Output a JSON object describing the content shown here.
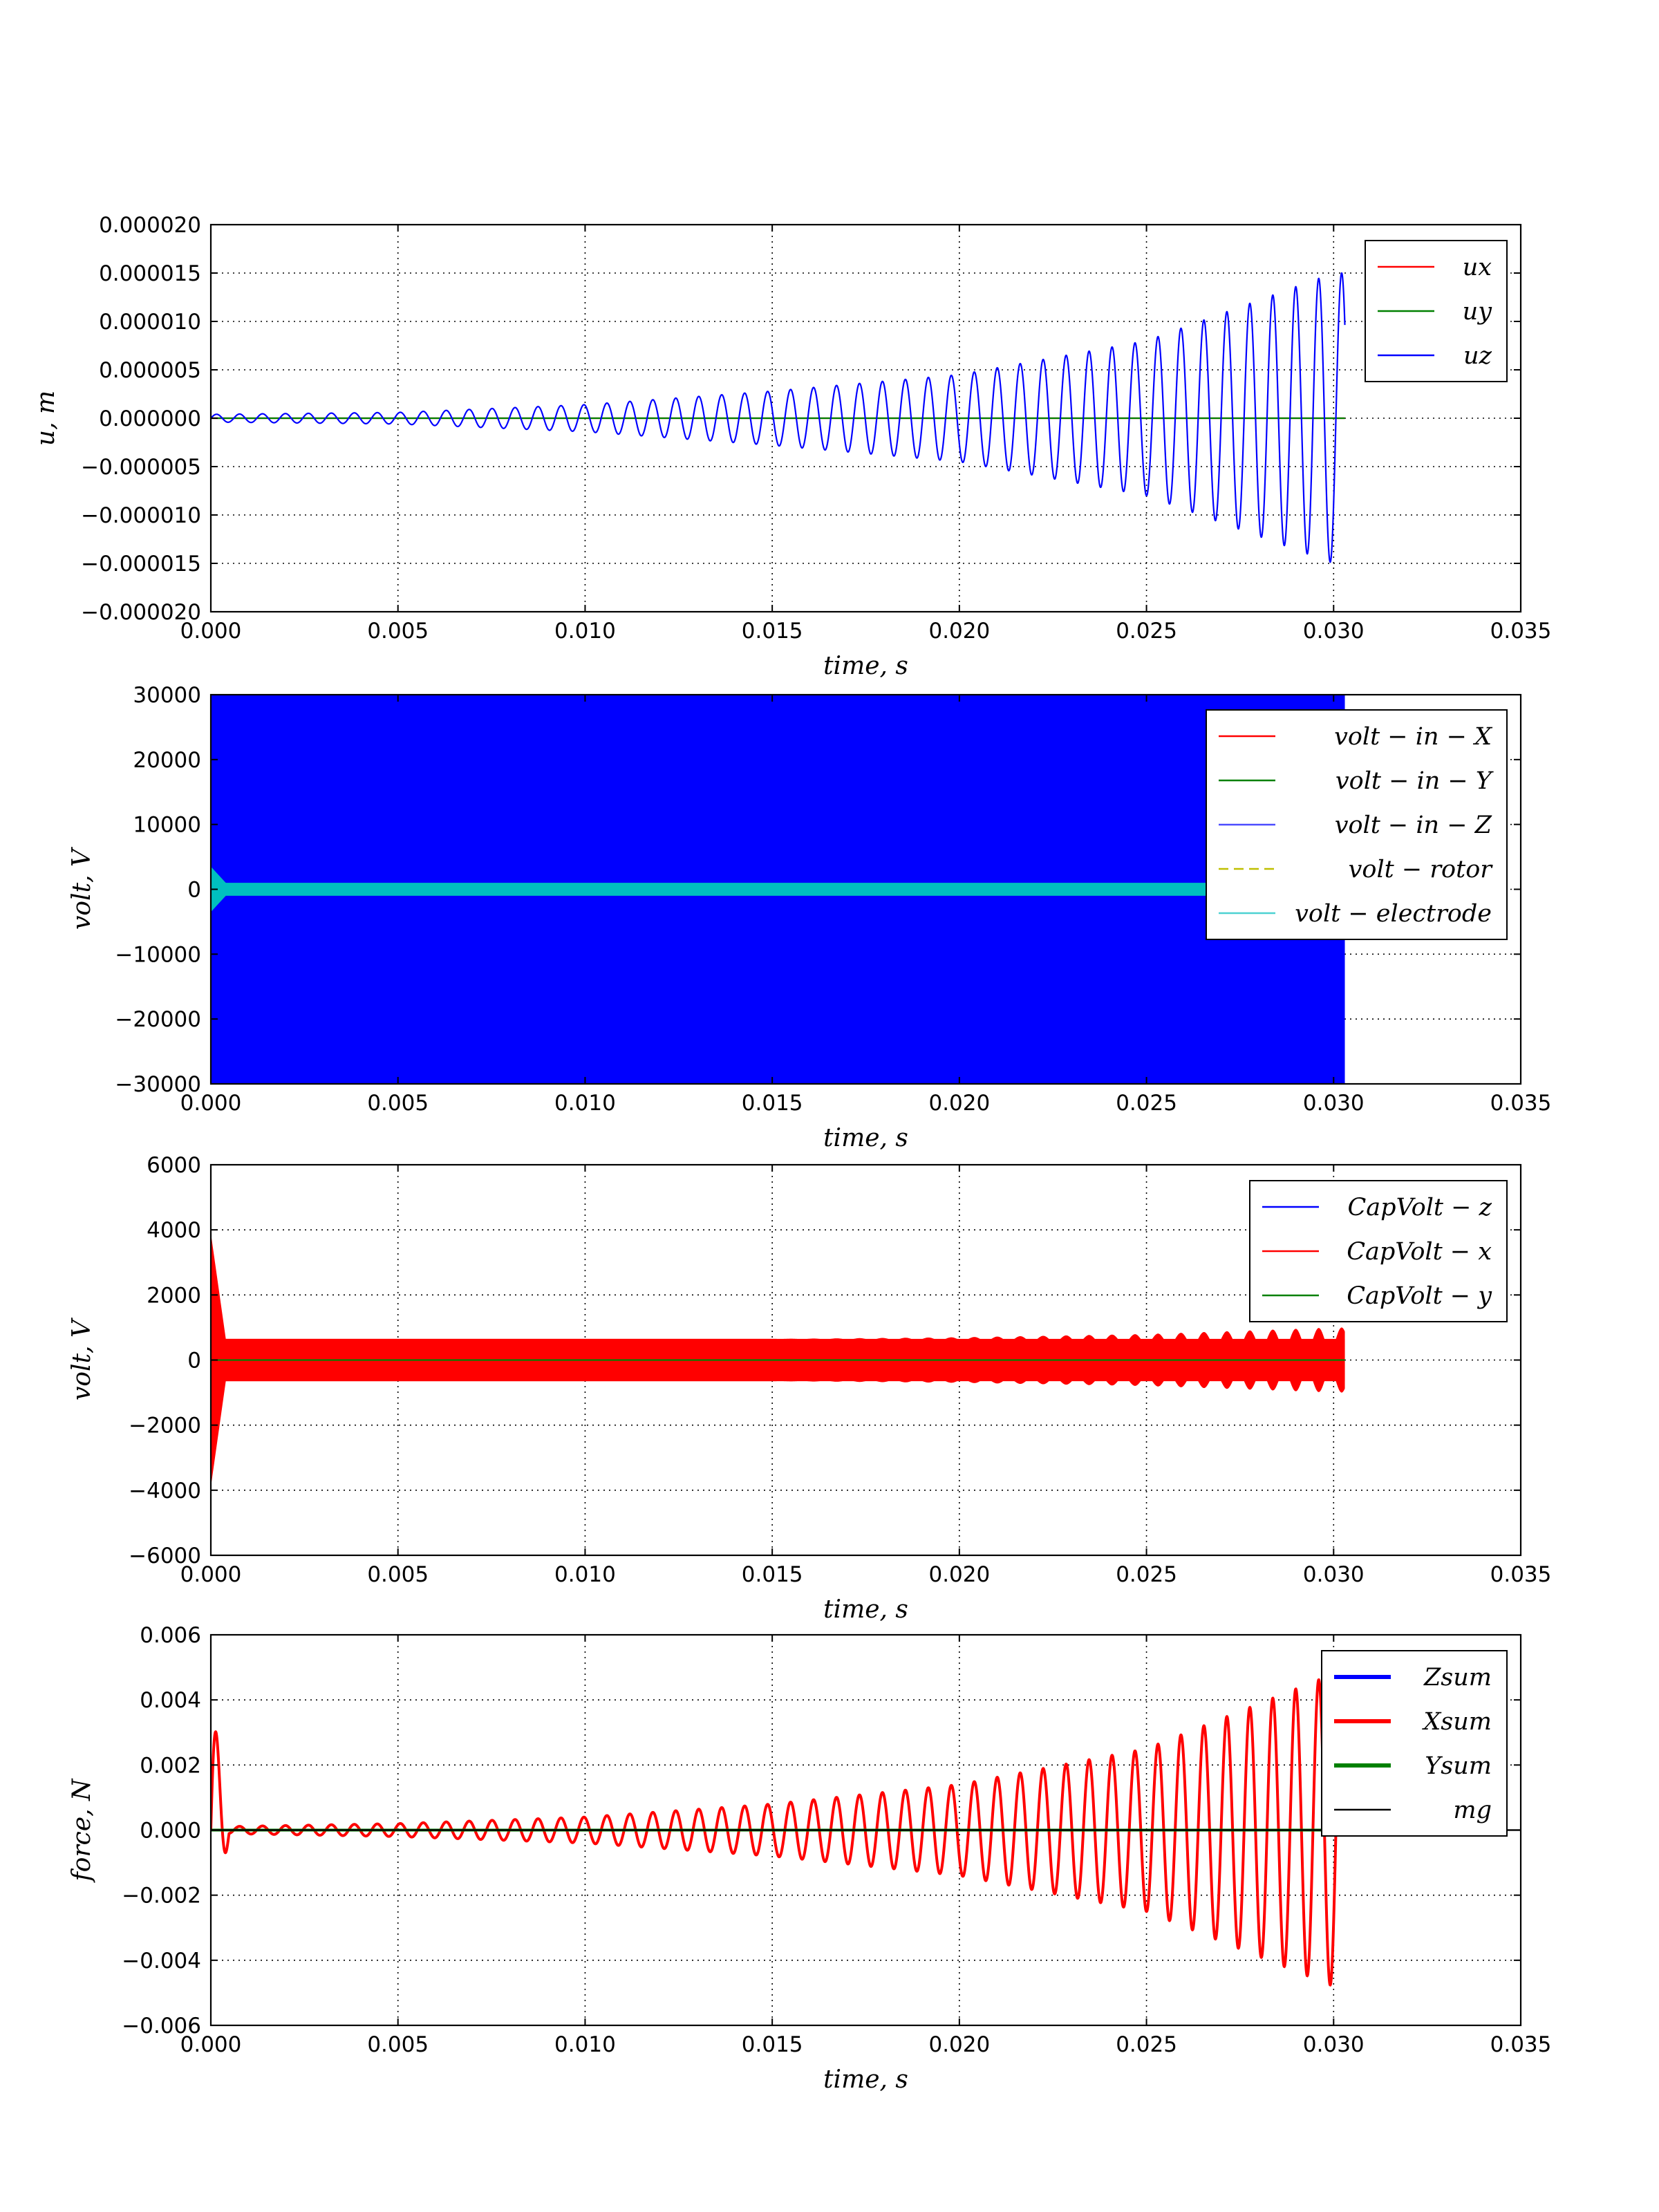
{
  "colors": {
    "red": "#ff0000",
    "green": "#008000",
    "blue": "#0000ff",
    "yellow": "#bfbf00",
    "cyan": "#00bfbf",
    "black": "#000000"
  },
  "chart_data": [
    {
      "type": "line",
      "xlabel": "time, s",
      "ylabel": "u, m",
      "xlim": [
        0,
        0.035
      ],
      "ylim": [
        -2e-05,
        2e-05
      ],
      "x_ticks": [
        "0.000",
        "0.005",
        "0.010",
        "0.015",
        "0.020",
        "0.025",
        "0.030",
        "0.035"
      ],
      "y_ticks": [
        "−0.000020",
        "−0.000015",
        "−0.000010",
        "−0.000005",
        "0.000000",
        "0.000005",
        "0.000010",
        "0.000015",
        "0.000020"
      ],
      "grid": true,
      "legend_position": "upper right",
      "series": [
        {
          "name": "ux",
          "color": "red",
          "style": "solid",
          "x": [
            0,
            0.0303
          ],
          "y": [
            0,
            0
          ]
        },
        {
          "name": "uy",
          "color": "green",
          "style": "solid",
          "x": [
            0,
            0.0303
          ],
          "y": [
            0,
            0
          ]
        },
        {
          "name": "uz",
          "color": "blue",
          "style": "oscillation",
          "t_end": 0.0303,
          "frequency_hz": 1630,
          "envelope": {
            "t": [
              0,
              0.005,
              0.01,
              0.015,
              0.02,
              0.025,
              0.03
            ],
            "amp": [
              4e-07,
              6e-07,
              1.4e-06,
              2.8e-06,
              4.5e-06,
              8e-06,
              1.5e-05
            ]
          }
        }
      ]
    },
    {
      "type": "line",
      "xlabel": "time, s",
      "ylabel": "volt, V",
      "xlim": [
        0,
        0.035
      ],
      "ylim": [
        -30000,
        30000
      ],
      "x_ticks": [
        "0.000",
        "0.005",
        "0.010",
        "0.015",
        "0.020",
        "0.025",
        "0.030",
        "0.035"
      ],
      "y_ticks": [
        "−30000",
        "−20000",
        "−10000",
        "0",
        "10000",
        "20000",
        "30000"
      ],
      "grid": true,
      "legend_position": "upper right",
      "series": [
        {
          "name": "volt − in − X",
          "color": "red",
          "style": "solid",
          "x": [
            0,
            0.0303
          ],
          "y": [
            0,
            0
          ]
        },
        {
          "name": "volt − in − Y",
          "color": "green",
          "style": "solid",
          "x": [
            0,
            0.0303
          ],
          "y": [
            0,
            0
          ]
        },
        {
          "name": "volt − in − Z",
          "color": "blue",
          "style": "band",
          "t_end": 0.0303,
          "y_range": [
            -30000,
            30000
          ]
        },
        {
          "name": "volt − rotor",
          "color": "yellow",
          "style": "dashed",
          "x": [
            0,
            0.0303
          ],
          "y": [
            0,
            0
          ]
        },
        {
          "name": "volt − electrode",
          "color": "cyan",
          "style": "band",
          "t_end": 0.0303,
          "y_range": [
            -1000,
            1000
          ],
          "initial_spike": 3500
        }
      ]
    },
    {
      "type": "line",
      "xlabel": "time, s",
      "ylabel": "volt, V",
      "xlim": [
        0,
        0.035
      ],
      "ylim": [
        -6000,
        6000
      ],
      "x_ticks": [
        "0.000",
        "0.005",
        "0.010",
        "0.015",
        "0.020",
        "0.025",
        "0.030",
        "0.035"
      ],
      "y_ticks": [
        "−6000",
        "−4000",
        "−2000",
        "0",
        "2000",
        "4000",
        "6000"
      ],
      "grid": true,
      "legend_position": "upper right",
      "series": [
        {
          "name": "CapVolt − z",
          "color": "blue",
          "style": "solid",
          "x": [
            0,
            0.0303
          ],
          "y": [
            0,
            0
          ]
        },
        {
          "name": "CapVolt − x",
          "color": "red",
          "style": "band",
          "t_end": 0.0303,
          "y_range": [
            -650,
            650
          ],
          "initial_spike": 3900,
          "envelope_modulation": {
            "frequency_hz": 1630,
            "t": [
              0,
              0.015,
              0.02,
              0.025,
              0.03
            ],
            "depth": [
              0,
              0,
              50,
              150,
              350
            ]
          }
        },
        {
          "name": "CapVolt − y",
          "color": "green",
          "style": "solid",
          "x": [
            0,
            0.0303
          ],
          "y": [
            0,
            0
          ]
        }
      ]
    },
    {
      "type": "line",
      "xlabel": "time, s",
      "ylabel": "force, N",
      "xlim": [
        0,
        0.035
      ],
      "ylim": [
        -0.006,
        0.006
      ],
      "x_ticks": [
        "0.000",
        "0.005",
        "0.010",
        "0.015",
        "0.020",
        "0.025",
        "0.030",
        "0.035"
      ],
      "y_ticks": [
        "−0.006",
        "−0.004",
        "−0.002",
        "0.000",
        "0.002",
        "0.004",
        "0.006"
      ],
      "grid": true,
      "legend_position": "upper right",
      "series": [
        {
          "name": "Zsum",
          "color": "blue",
          "style": "solid-thick",
          "x": [
            0,
            0.0303
          ],
          "y": [
            0,
            0
          ]
        },
        {
          "name": "Xsum",
          "color": "red",
          "style": "oscillation-thick",
          "t_end": 0.0303,
          "frequency_hz": 1630,
          "initial_burst": {
            "t_end": 0.0005,
            "amp": 0.0042
          },
          "envelope": {
            "t": [
              0,
              0.005,
              0.01,
              0.015,
              0.02,
              0.025,
              0.03
            ],
            "amp": [
              0.0001,
              0.0002,
              0.0004,
              0.0008,
              0.0014,
              0.0025,
              0.0048
            ]
          }
        },
        {
          "name": "Ysum",
          "color": "green",
          "style": "solid-thick",
          "x": [
            0,
            0.0303
          ],
          "y": [
            0,
            0
          ]
        },
        {
          "name": "mg",
          "color": "black",
          "style": "solid",
          "x": [
            0,
            0.035
          ],
          "y": [
            0,
            0
          ]
        }
      ]
    }
  ]
}
